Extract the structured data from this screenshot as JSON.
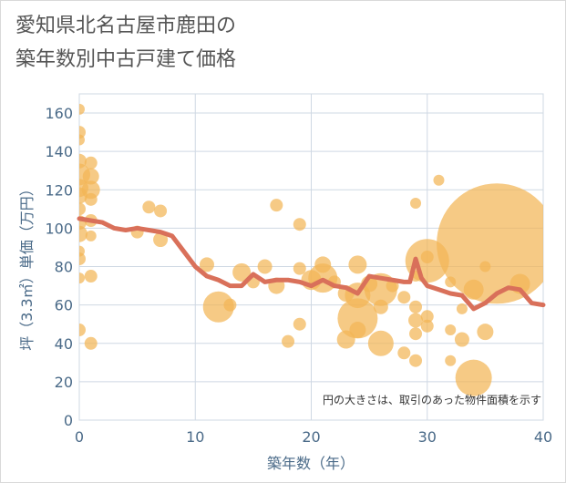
{
  "title_line1": "愛知県北名古屋市鹿田の",
  "title_line2": "築年数別中古戸建て価格",
  "chart_data": {
    "type": "scatter",
    "title": "愛知県北名古屋市鹿田の築年数別中古戸建て価格",
    "xlabel": "築年数（年）",
    "ylabel": "坪（3.3㎡）単価（万円）",
    "xlim": [
      0,
      40
    ],
    "ylim": [
      0,
      170
    ],
    "xticks": [
      0,
      10,
      20,
      30,
      40
    ],
    "yticks": [
      0,
      20,
      40,
      60,
      80,
      100,
      120,
      140,
      160
    ],
    "grid": true,
    "annotation": "円の大きさは、取引のあった物件面積を示す",
    "colors": {
      "bubble": "#f2b656",
      "line": "#d9705a",
      "grid": "#cfd8e3",
      "axis_text": "#4a6a88"
    },
    "bubbles": [
      {
        "x": 0,
        "y": 162,
        "s": 6
      },
      {
        "x": 0,
        "y": 150,
        "s": 7
      },
      {
        "x": 0,
        "y": 146,
        "s": 6
      },
      {
        "x": 0,
        "y": 135,
        "s": 8
      },
      {
        "x": 0,
        "y": 128,
        "s": 12
      },
      {
        "x": 0,
        "y": 121,
        "s": 10
      },
      {
        "x": 0,
        "y": 117,
        "s": 9
      },
      {
        "x": 0,
        "y": 110,
        "s": 7
      },
      {
        "x": 0,
        "y": 103,
        "s": 8
      },
      {
        "x": 0,
        "y": 97,
        "s": 9
      },
      {
        "x": 0,
        "y": 88,
        "s": 6
      },
      {
        "x": 0,
        "y": 84,
        "s": 7
      },
      {
        "x": 0,
        "y": 74,
        "s": 6
      },
      {
        "x": 0,
        "y": 47,
        "s": 7
      },
      {
        "x": 1,
        "y": 134,
        "s": 7
      },
      {
        "x": 1,
        "y": 127,
        "s": 9
      },
      {
        "x": 1,
        "y": 120,
        "s": 10
      },
      {
        "x": 1,
        "y": 115,
        "s": 7
      },
      {
        "x": 1,
        "y": 104,
        "s": 7
      },
      {
        "x": 1,
        "y": 96,
        "s": 6
      },
      {
        "x": 1,
        "y": 75,
        "s": 7
      },
      {
        "x": 1,
        "y": 40,
        "s": 7
      },
      {
        "x": 5,
        "y": 98,
        "s": 7
      },
      {
        "x": 6,
        "y": 111,
        "s": 7
      },
      {
        "x": 7,
        "y": 109,
        "s": 7
      },
      {
        "x": 7,
        "y": 94,
        "s": 8
      },
      {
        "x": 11,
        "y": 81,
        "s": 8
      },
      {
        "x": 12,
        "y": 59,
        "s": 17
      },
      {
        "x": 13,
        "y": 60,
        "s": 7
      },
      {
        "x": 14,
        "y": 77,
        "s": 10
      },
      {
        "x": 15,
        "y": 72,
        "s": 7
      },
      {
        "x": 16,
        "y": 80,
        "s": 8
      },
      {
        "x": 17,
        "y": 112,
        "s": 7
      },
      {
        "x": 17,
        "y": 70,
        "s": 9
      },
      {
        "x": 18,
        "y": 41,
        "s": 7
      },
      {
        "x": 19,
        "y": 102,
        "s": 7
      },
      {
        "x": 19,
        "y": 79,
        "s": 7
      },
      {
        "x": 19,
        "y": 50,
        "s": 7
      },
      {
        "x": 20,
        "y": 73,
        "s": 11
      },
      {
        "x": 21,
        "y": 81,
        "s": 9
      },
      {
        "x": 21,
        "y": 74,
        "s": 16
      },
      {
        "x": 22,
        "y": 72,
        "s": 7
      },
      {
        "x": 23,
        "y": 66,
        "s": 9
      },
      {
        "x": 23,
        "y": 42,
        "s": 10
      },
      {
        "x": 24,
        "y": 81,
        "s": 10
      },
      {
        "x": 24,
        "y": 65,
        "s": 14
      },
      {
        "x": 24,
        "y": 53,
        "s": 22
      },
      {
        "x": 24,
        "y": 47,
        "s": 9
      },
      {
        "x": 25,
        "y": 71,
        "s": 9
      },
      {
        "x": 26,
        "y": 68,
        "s": 18
      },
      {
        "x": 26,
        "y": 59,
        "s": 8
      },
      {
        "x": 26,
        "y": 40,
        "s": 14
      },
      {
        "x": 27,
        "y": 70,
        "s": 7
      },
      {
        "x": 28,
        "y": 64,
        "s": 7
      },
      {
        "x": 28,
        "y": 35,
        "s": 7
      },
      {
        "x": 29,
        "y": 113,
        "s": 6
      },
      {
        "x": 29,
        "y": 75,
        "s": 6
      },
      {
        "x": 29,
        "y": 59,
        "s": 7
      },
      {
        "x": 29,
        "y": 52,
        "s": 8
      },
      {
        "x": 29,
        "y": 45,
        "s": 7
      },
      {
        "x": 29,
        "y": 31,
        "s": 7
      },
      {
        "x": 30,
        "y": 85,
        "s": 7
      },
      {
        "x": 30,
        "y": 83,
        "s": 24
      },
      {
        "x": 30,
        "y": 54,
        "s": 7
      },
      {
        "x": 30,
        "y": 49,
        "s": 7
      },
      {
        "x": 31,
        "y": 125,
        "s": 6
      },
      {
        "x": 32,
        "y": 72,
        "s": 6
      },
      {
        "x": 32,
        "y": 47,
        "s": 6
      },
      {
        "x": 32,
        "y": 31,
        "s": 6
      },
      {
        "x": 33,
        "y": 58,
        "s": 6
      },
      {
        "x": 33,
        "y": 42,
        "s": 8
      },
      {
        "x": 34,
        "y": 68,
        "s": 11
      },
      {
        "x": 34,
        "y": 22,
        "s": 20
      },
      {
        "x": 35,
        "y": 80,
        "s": 6
      },
      {
        "x": 35,
        "y": 46,
        "s": 9
      },
      {
        "x": 36,
        "y": 92,
        "s": 66
      },
      {
        "x": 38,
        "y": 71,
        "s": 11
      }
    ],
    "trend": {
      "x": [
        0,
        1,
        2,
        3,
        4,
        5,
        6,
        7,
        8,
        9,
        10,
        11,
        12,
        13,
        14,
        15,
        16,
        17,
        18,
        19,
        20,
        21,
        22,
        23,
        24,
        25,
        26,
        27,
        28,
        28.5,
        29,
        29.5,
        30,
        31,
        32,
        33,
        34,
        35,
        36,
        37,
        38,
        39,
        40
      ],
      "y": [
        105,
        104,
        103,
        100,
        99,
        100,
        99,
        98,
        96,
        88,
        80,
        75,
        73,
        70,
        70,
        76,
        72,
        73,
        73,
        72,
        70,
        73,
        70,
        69,
        66,
        75,
        74,
        73,
        72,
        72,
        84,
        74,
        70,
        68,
        66,
        65,
        58,
        61,
        66,
        69,
        68,
        61,
        60
      ]
    }
  }
}
